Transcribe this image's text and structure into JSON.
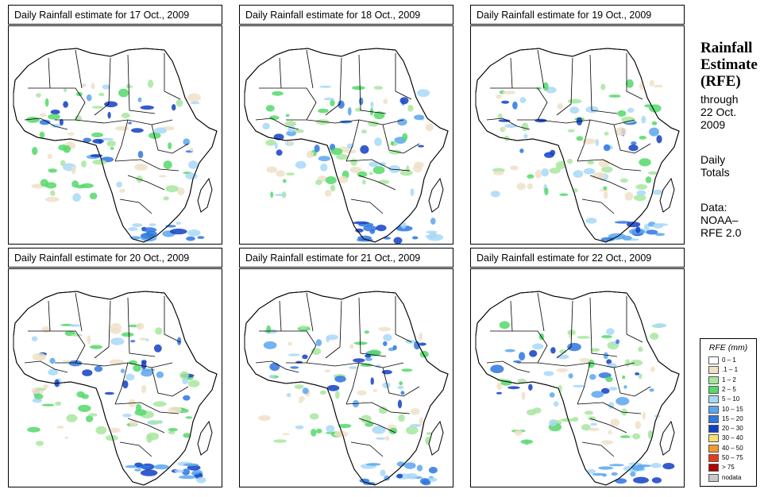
{
  "panels": [
    {
      "title": "Daily Rainfall estimate for  17 Oct., 2009"
    },
    {
      "title": "Daily Rainfall estimate for  18 Oct., 2009"
    },
    {
      "title": "Daily Rainfall estimate for  19 Oct., 2009"
    },
    {
      "title": "Daily Rainfall estimate for  20 Oct., 2009"
    },
    {
      "title": "Daily Rainfall estimate for  21 Oct., 2009"
    },
    {
      "title": "Daily Rainfall estimate for  22 Oct., 2009"
    }
  ],
  "side": {
    "heading": "Rainfall\nEstimate\n(RFE)",
    "through": "through\n22 Oct.\n2009",
    "totals": "Daily\nTotals",
    "source": "Data:\nNOAA–\nRFE 2.0"
  },
  "legend": {
    "title": "RFE (mm)",
    "items": [
      {
        "label": "0 – 1",
        "color": "#ffffff"
      },
      {
        "label": ".1 – 1",
        "color": "#f0e0c8"
      },
      {
        "label": "1 – 2",
        "color": "#a8e6a0"
      },
      {
        "label": "2 – 5",
        "color": "#55d86a"
      },
      {
        "label": "5 – 10",
        "color": "#a8d8f8"
      },
      {
        "label": "10 – 15",
        "color": "#5aa6ee"
      },
      {
        "label": "15 – 20",
        "color": "#2e76e0"
      },
      {
        "label": "20 – 30",
        "color": "#123fc4"
      },
      {
        "label": "30 – 40",
        "color": "#f8e070"
      },
      {
        "label": "40 – 50",
        "color": "#f49a2c"
      },
      {
        "label": "50 – 75",
        "color": "#e83a18"
      },
      {
        "label": "> 75",
        "color": "#b00000"
      },
      {
        "label": "nodata",
        "color": "#c8c8c8"
      }
    ]
  }
}
